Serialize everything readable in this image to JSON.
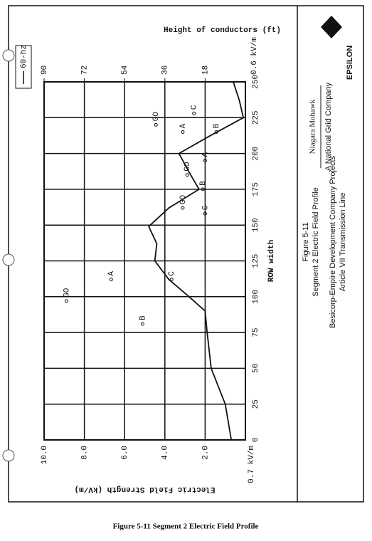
{
  "chart_data": {
    "type": "line",
    "title": "Height of conductors (ft)",
    "x_label": "ROW width",
    "y_label": "Electric Field Strength (kV/m)",
    "legend_label": "60-hz",
    "x": [
      0,
      25,
      50,
      75,
      90,
      100,
      112,
      125,
      137,
      149,
      162,
      175,
      187,
      200,
      212,
      225,
      237,
      250
    ],
    "values": [
      0.7,
      1.0,
      1.7,
      1.9,
      2.0,
      2.8,
      3.8,
      4.5,
      4.4,
      4.8,
      3.8,
      2.3,
      2.8,
      3.3,
      1.8,
      0.1,
      0.3,
      0.6
    ],
    "color": "#111111",
    "xlim": [
      0,
      250
    ],
    "xticks": [
      0,
      25,
      50,
      75,
      100,
      125,
      150,
      175,
      200,
      225,
      250
    ],
    "ylim": [
      0,
      10
    ],
    "yticks": [
      {
        "value": 2,
        "label": "2.0"
      },
      {
        "value": 4,
        "label": "4.0"
      },
      {
        "value": 6,
        "label": "6.0"
      },
      {
        "value": 8,
        "label": "8.0"
      },
      {
        "value": 10,
        "label": "10.0"
      }
    ],
    "y2lim": [
      0,
      90
    ],
    "y2ticks": [
      18,
      36,
      54,
      72,
      90
    ],
    "annotations": [
      "0.7 kV/m",
      "0.6 kV/m"
    ],
    "conductors": {
      "axis": "y2",
      "labels": [
        "GO",
        "A",
        "B",
        "C",
        "GO",
        "C",
        "B",
        "GO",
        "A",
        "GO",
        "A",
        "C",
        "B"
      ],
      "x": [
        97,
        112,
        81,
        112,
        162,
        158,
        175,
        185,
        195,
        220,
        215,
        228,
        215
      ],
      "y": [
        80,
        60,
        46,
        33,
        28,
        18,
        19,
        26,
        18,
        40,
        28,
        23,
        13
      ]
    },
    "grid": true
  },
  "panel": {
    "figure": "Figure 5-11",
    "subtitle": "Segment 2 Electric Field Profile",
    "project": "Besicorp-Empire Development Company Projects",
    "line": "Article VII Transmission Line",
    "company": "Niagara Mohawk",
    "parent": "A National Grid Company",
    "consultant": "EPSILON"
  },
  "caption": "Figure 5-11 Segment 2 Electric Field Profile"
}
